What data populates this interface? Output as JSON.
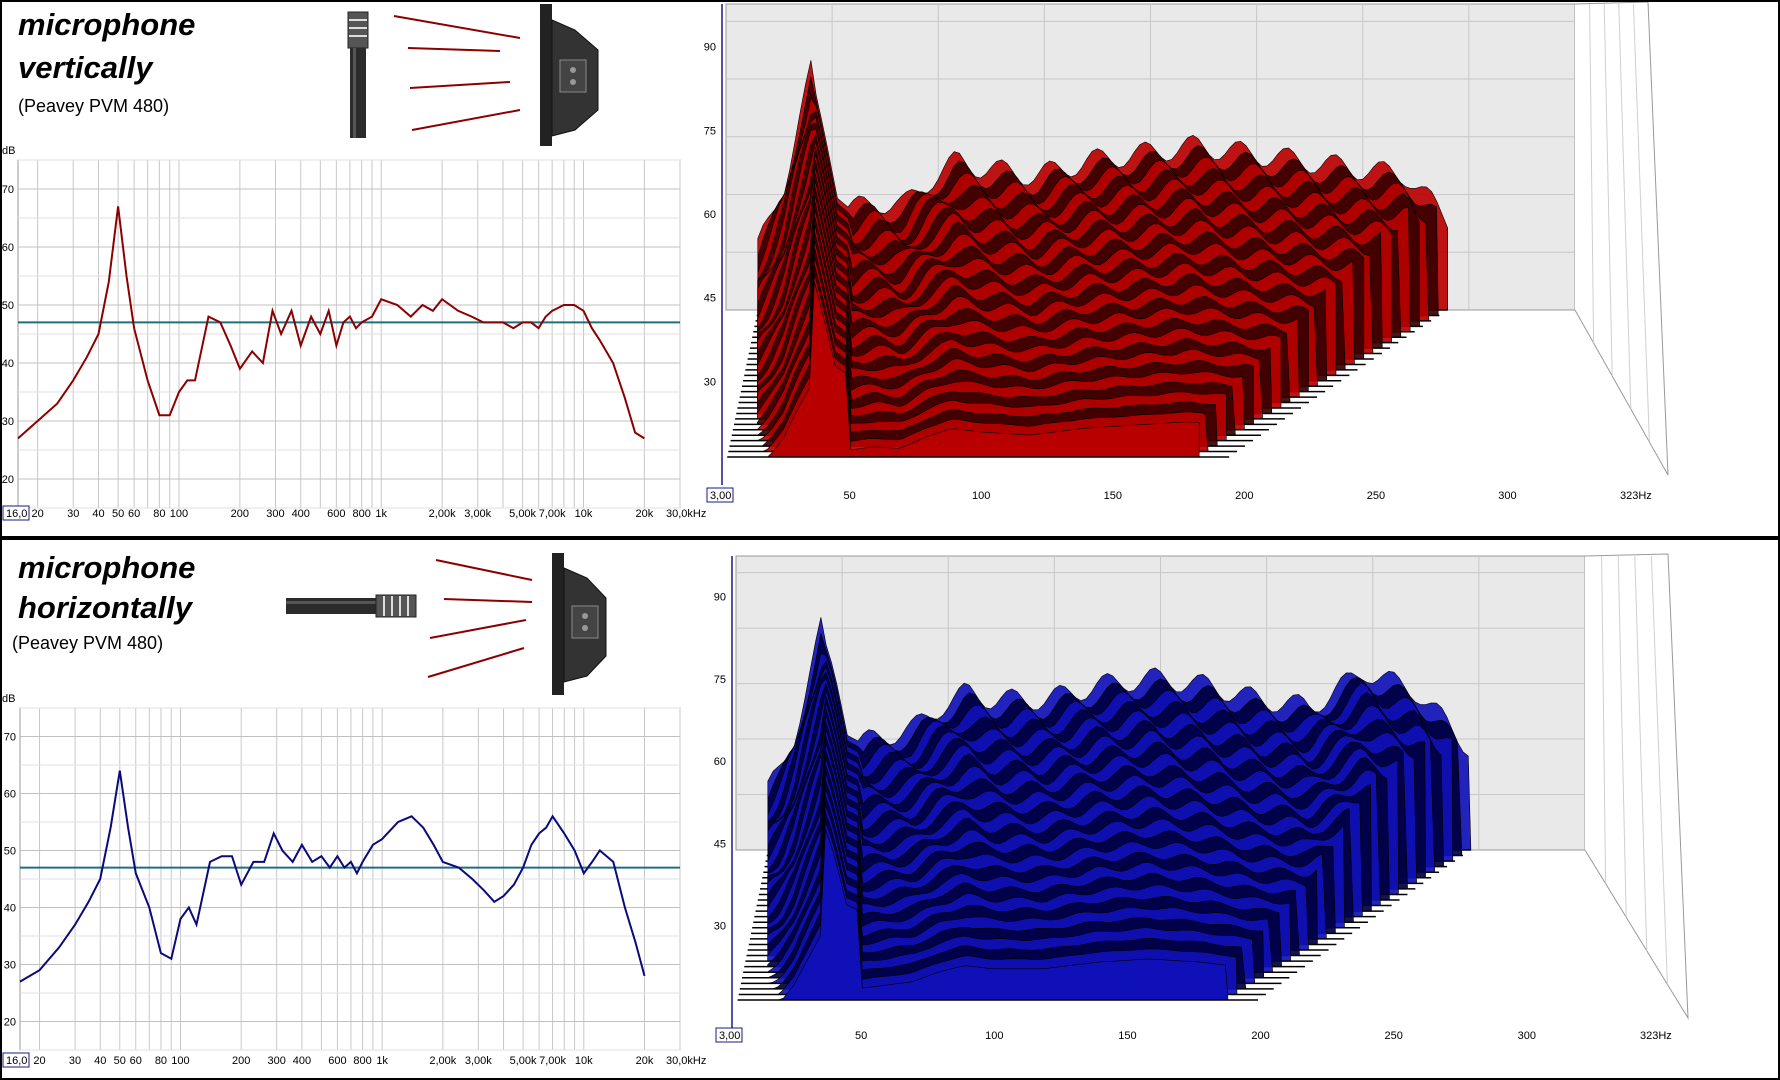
{
  "panels": [
    {
      "title_line1": "microphone",
      "title_line2": "vertically",
      "subtitle": "(Peavey PVM 480)",
      "color": "#8b0000",
      "waterfall_color": "#b80000",
      "waterfall_dark": "#3a0000"
    },
    {
      "title_line1": "microphone",
      "title_line2": "horizontally",
      "subtitle": "(Peavey PVM 480)",
      "color": "#0a0a7a",
      "waterfall_color": "#1010b8",
      "waterfall_dark": "#000040"
    }
  ],
  "fr_axis": {
    "y_unit": "dB",
    "y_ticks": [
      "70",
      "60",
      "50",
      "40",
      "30",
      "20"
    ],
    "x_start_label": "16,0",
    "x_ticks": [
      "20",
      "30",
      "40",
      "50",
      "60",
      "80",
      "100",
      "200",
      "300",
      "400",
      "600",
      "800",
      "1k",
      "2,00k",
      "3,00k",
      "5,00k",
      "7,00k",
      "10k",
      "20k",
      "30,0kHz"
    ],
    "reference_line_color": "#1f6f7f"
  },
  "wf_axis": {
    "y_ticks": [
      "90",
      "75",
      "60",
      "45",
      "30"
    ],
    "x_start_label": "3,00",
    "x_ticks": [
      "50",
      "100",
      "150",
      "200",
      "250",
      "300",
      "323Hz"
    ]
  },
  "chart_data": [
    {
      "type": "line",
      "title": "microphone vertically",
      "subtitle": "(Peavey PVM 480)",
      "ylabel": "dB",
      "xscale": "log",
      "xlim": [
        16,
        30000
      ],
      "ylim": [
        15,
        75
      ],
      "reference_level_db": 47,
      "series": [
        {
          "x": [
            16,
            20,
            25,
            30,
            35,
            40,
            45,
            50,
            55,
            60,
            70,
            80,
            90,
            100,
            110,
            120,
            140,
            160,
            180,
            200,
            230,
            260,
            290,
            320,
            360,
            400,
            450,
            500,
            550,
            600,
            650,
            700,
            750,
            800,
            900,
            1000,
            1200,
            1400,
            1600,
            1800,
            2000,
            2400,
            2800,
            3200,
            3600,
            4000,
            4500,
            5000,
            5500,
            6000,
            6500,
            7000,
            8000,
            9000,
            10000,
            11000,
            12000,
            14000,
            16000,
            18000,
            20000
          ],
          "y": [
            27,
            30,
            33,
            37,
            41,
            45,
            54,
            67,
            55,
            46,
            37,
            31,
            31,
            35,
            37,
            37,
            48,
            47,
            43,
            39,
            42,
            40,
            49,
            45,
            49,
            43,
            48,
            45,
            49,
            43,
            47,
            48,
            46,
            47,
            48,
            51,
            50,
            48,
            50,
            49,
            51,
            49,
            48,
            47,
            47,
            47,
            46,
            47,
            47,
            46,
            48,
            49,
            50,
            50,
            49,
            46,
            44,
            40,
            34,
            28,
            27
          ]
        }
      ]
    },
    {
      "type": "area",
      "title": "microphone vertically",
      "subtitle": "(Peavey PVM 480)",
      "representation": "waterfall",
      "xlim": [
        3,
        323
      ],
      "ylim": [
        15,
        93
      ],
      "series": [
        {
          "x": [
            15,
            20,
            25,
            30,
            35,
            40,
            45,
            50,
            60,
            70,
            80,
            90,
            100,
            120,
            140,
            160,
            180,
            200,
            220,
            240,
            260,
            275
          ],
          "y": [
            45,
            52,
            62,
            78,
            92,
            76,
            58,
            55,
            57,
            56,
            63,
            68,
            66,
            64,
            68,
            70,
            72,
            70,
            68,
            66,
            64,
            52
          ]
        }
      ]
    },
    {
      "type": "line",
      "title": "microphone horizontally",
      "subtitle": "(Peavey PVM 480)",
      "ylabel": "dB",
      "xscale": "log",
      "xlim": [
        16,
        30000
      ],
      "ylim": [
        15,
        75
      ],
      "reference_level_db": 47,
      "series": [
        {
          "x": [
            16,
            20,
            25,
            30,
            35,
            40,
            45,
            50,
            55,
            60,
            70,
            80,
            90,
            100,
            110,
            120,
            140,
            160,
            180,
            200,
            230,
            260,
            290,
            320,
            360,
            400,
            450,
            500,
            550,
            600,
            650,
            700,
            750,
            800,
            900,
            1000,
            1200,
            1400,
            1600,
            1800,
            2000,
            2400,
            2800,
            3200,
            3600,
            4000,
            4500,
            5000,
            5500,
            6000,
            6500,
            7000,
            8000,
            9000,
            10000,
            11000,
            12000,
            14000,
            16000,
            18000,
            20000
          ],
          "y": [
            27,
            29,
            33,
            37,
            41,
            45,
            54,
            64,
            54,
            46,
            40,
            32,
            31,
            38,
            40,
            37,
            48,
            49,
            49,
            44,
            48,
            48,
            53,
            50,
            48,
            51,
            48,
            49,
            47,
            49,
            47,
            48,
            46,
            48,
            51,
            52,
            55,
            56,
            54,
            51,
            48,
            47,
            45,
            43,
            41,
            42,
            44,
            47,
            51,
            53,
            54,
            56,
            53,
            50,
            46,
            48,
            50,
            48,
            40,
            34,
            28
          ]
        }
      ]
    },
    {
      "type": "area",
      "title": "microphone horizontally",
      "subtitle": "(Peavey PVM 480)",
      "representation": "waterfall",
      "xlim": [
        3,
        323
      ],
      "ylim": [
        15,
        93
      ],
      "series": [
        {
          "x": [
            15,
            20,
            25,
            30,
            35,
            40,
            45,
            50,
            60,
            70,
            80,
            90,
            100,
            120,
            140,
            160,
            180,
            200,
            220,
            240,
            260,
            280
          ],
          "y": [
            45,
            50,
            60,
            75,
            90,
            78,
            60,
            58,
            60,
            62,
            68,
            72,
            70,
            70,
            74,
            76,
            74,
            70,
            68,
            78,
            72,
            56
          ]
        }
      ]
    }
  ]
}
